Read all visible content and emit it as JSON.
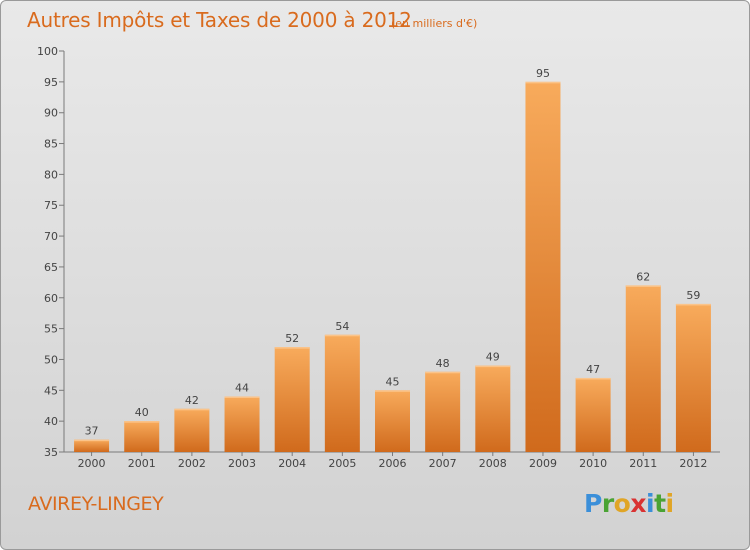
{
  "header": {
    "title": "Autres Impôts et Taxes de 2000 à 2012",
    "subtitle": "(en milliers d'€)"
  },
  "footer": {
    "commune": "AVIREY-LINGEY",
    "logo": [
      "P",
      "r",
      "o",
      "x",
      "i",
      "t",
      "i"
    ]
  },
  "colors": {
    "title": "#d96b1e",
    "bar_light": "#f7a95a",
    "bar_dark": "#d46f1f",
    "axis": "#777777",
    "grid": "#c8c8c8"
  },
  "chart_data": {
    "type": "bar",
    "title": "Autres Impôts et Taxes de 2000 à 2012",
    "subtitle": "(en milliers d'€)",
    "categories": [
      "2000",
      "2001",
      "2002",
      "2003",
      "2004",
      "2005",
      "2006",
      "2007",
      "2008",
      "2009",
      "2010",
      "2011",
      "2012"
    ],
    "values": [
      37,
      40,
      42,
      44,
      52,
      54,
      45,
      48,
      49,
      95,
      47,
      62,
      59
    ],
    "ylim": [
      35,
      100
    ],
    "yticks": [
      35,
      40,
      45,
      50,
      55,
      60,
      65,
      70,
      75,
      80,
      85,
      90,
      95,
      100
    ],
    "grid": false,
    "data_labels": true
  }
}
